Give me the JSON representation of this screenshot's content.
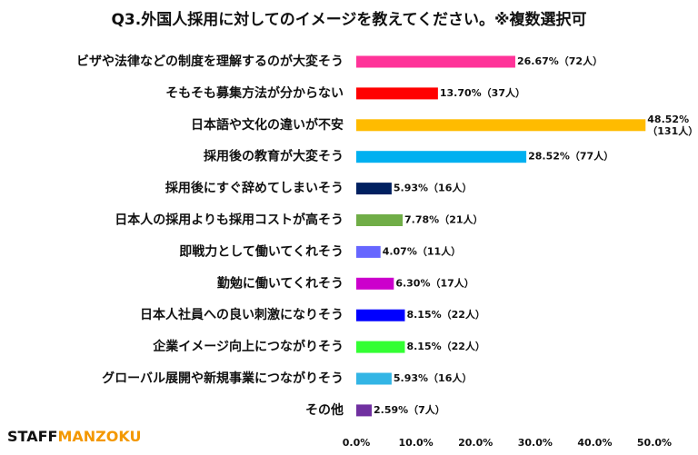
{
  "chart_data": {
    "type": "bar",
    "orientation": "horizontal",
    "title": "Q3.外国人採用に対してのイメージを教えてください。※複数選択可",
    "categories": [
      "ビザや法律などの制度を理解するのが大変そう",
      "そもそも募集方法が分からない",
      "日本語や文化の違いが不安",
      "採用後の教育が大変そう",
      "採用後にすぐ辞めてしまいそう",
      "日本人の採用よりも採用コストが高そう",
      "即戦力として働いてくれそう",
      "勤勉に働いてくれそう",
      "日本人社員への良い刺激になりそう",
      "企業イメージ向上につながりそう",
      "グローバル展開や新規事業につながりそう",
      "その他"
    ],
    "values": [
      26.67,
      13.7,
      48.52,
      28.52,
      5.93,
      7.78,
      4.07,
      6.3,
      8.15,
      8.15,
      5.93,
      2.59
    ],
    "value_labels": [
      "26.67%（72人）",
      "13.70%（37人）",
      "48.52%\n（131人）",
      "28.52%（77人）",
      "5.93%（16人）",
      "7.78%（21人）",
      "4.07%（11人）",
      "6.30%（17人）",
      "8.15%（22人）",
      "8.15%（22人）",
      "5.93%（16人）",
      "2.59%（7人）"
    ],
    "colors": [
      "#ff3399",
      "#ff0000",
      "#ffbb00",
      "#00b0f0",
      "#002060",
      "#70ad47",
      "#6666ff",
      "#cc00cc",
      "#0000ff",
      "#33ff33",
      "#33b5e5",
      "#7030a0"
    ],
    "xlim": [
      0,
      50
    ],
    "xticks": [
      {
        "value": 0,
        "label": "0.0%"
      },
      {
        "value": 10,
        "label": "10.0%"
      },
      {
        "value": 20,
        "label": "20.0%"
      },
      {
        "value": 30,
        "label": "30.0%"
      },
      {
        "value": 40,
        "label": "40.0%"
      },
      {
        "value": 50,
        "label": "50.0%"
      }
    ],
    "grid": false
  },
  "brand": {
    "part1": "STAFF",
    "part2": "MANZOKU"
  }
}
